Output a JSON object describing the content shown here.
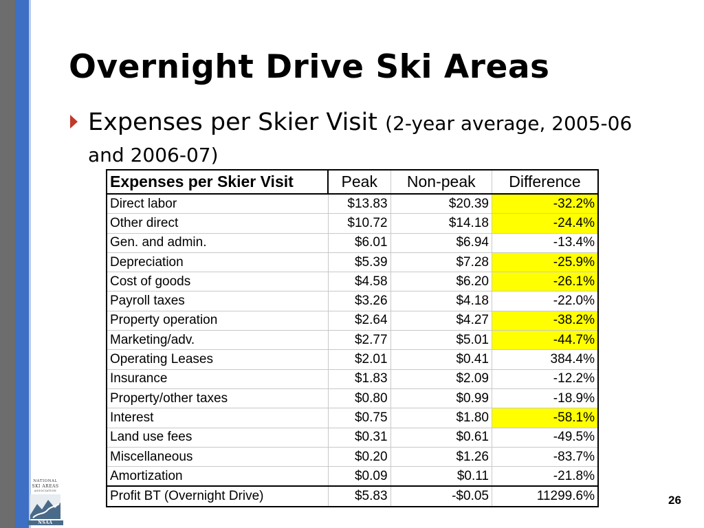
{
  "slide": {
    "title": "Overnight Drive Ski Areas",
    "bullet_main": "Expenses per Skier Visit",
    "bullet_note": "(2-year average, 2005-06 and 2006-07)",
    "page_number": "26"
  },
  "logo": {
    "line1": "NATIONAL",
    "line2": "SKI AREAS",
    "line3": "ASSOCIATION",
    "line4": "NSAA"
  },
  "table": {
    "headers": [
      "Expenses per Skier Visit",
      "Peak",
      "Non-peak",
      "Difference"
    ],
    "rows": [
      {
        "label": "Direct labor",
        "peak": "$13.83",
        "nonpeak": "$20.39",
        "diff": "-32.2%",
        "highlight": true
      },
      {
        "label": "Other direct",
        "peak": "$10.72",
        "nonpeak": "$14.18",
        "diff": "-24.4%",
        "highlight": true
      },
      {
        "label": "Gen. and admin.",
        "peak": "$6.01",
        "nonpeak": "$6.94",
        "diff": "-13.4%",
        "highlight": false
      },
      {
        "label": "Depreciation",
        "peak": "$5.39",
        "nonpeak": "$7.28",
        "diff": "-25.9%",
        "highlight": true
      },
      {
        "label": "Cost of goods",
        "peak": "$4.58",
        "nonpeak": "$6.20",
        "diff": "-26.1%",
        "highlight": true
      },
      {
        "label": "Payroll taxes",
        "peak": "$3.26",
        "nonpeak": "$4.18",
        "diff": "-22.0%",
        "highlight": false
      },
      {
        "label": "Property operation",
        "peak": "$2.64",
        "nonpeak": "$4.27",
        "diff": "-38.2%",
        "highlight": true
      },
      {
        "label": "Marketing/adv.",
        "peak": "$2.77",
        "nonpeak": "$5.01",
        "diff": "-44.7%",
        "highlight": true
      },
      {
        "label": "Operating Leases",
        "peak": "$2.01",
        "nonpeak": "$0.41",
        "diff": "384.4%",
        "highlight": false
      },
      {
        "label": "Insurance",
        "peak": "$1.83",
        "nonpeak": "$2.09",
        "diff": "-12.2%",
        "highlight": false
      },
      {
        "label": "Property/other taxes",
        "peak": "$0.80",
        "nonpeak": "$0.99",
        "diff": "-18.9%",
        "highlight": false
      },
      {
        "label": "Interest",
        "peak": "$0.75",
        "nonpeak": "$1.80",
        "diff": "-58.1%",
        "highlight": true
      },
      {
        "label": "Land use fees",
        "peak": "$0.31",
        "nonpeak": "$0.61",
        "diff": "-49.5%",
        "highlight": false
      },
      {
        "label": "Miscellaneous",
        "peak": "$0.20",
        "nonpeak": "$1.26",
        "diff": "-83.7%",
        "highlight": false
      },
      {
        "label": "Amortization",
        "peak": "$0.09",
        "nonpeak": "$0.11",
        "diff": "-21.8%",
        "highlight": false
      }
    ],
    "total": {
      "label": "Profit BT (Overnight Drive)",
      "peak": "$5.83",
      "nonpeak": "-$0.05",
      "diff": "11299.6%"
    }
  },
  "colors": {
    "highlight": "#ffff00",
    "bullet": "#c0392b",
    "bar_gray": "#6d6d6d",
    "bar_blue": "#3d6fc4"
  }
}
